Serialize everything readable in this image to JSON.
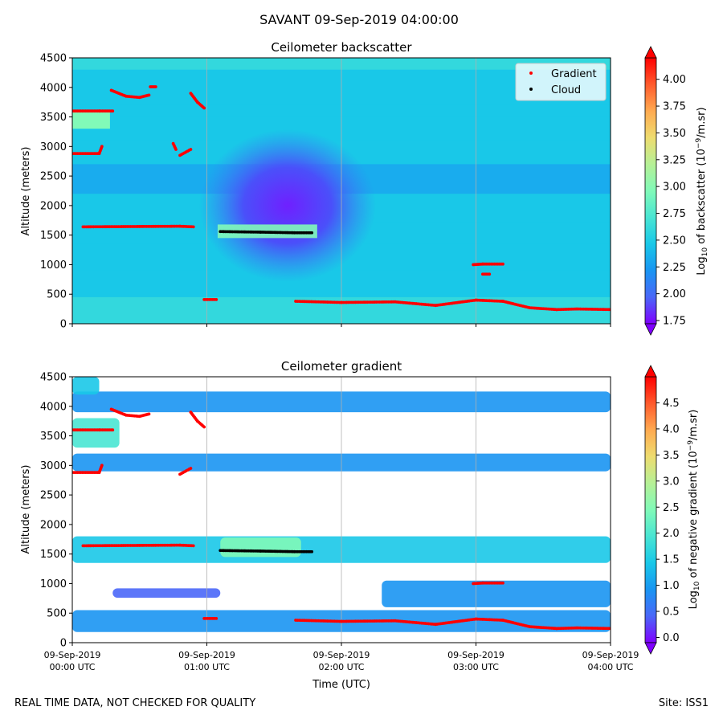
{
  "suptitle": "SAVANT 09-Sep-2019 04:00:00",
  "footer": {
    "left": "REAL TIME DATA, NOT CHECKED FOR QUALITY",
    "right": "Site: ISS1"
  },
  "colors": {
    "gradient_marker": "#ff0000",
    "cloud_marker": "#000000",
    "grid": "#b0b0b0"
  },
  "colormap": [
    "#7f00ff",
    "#4a67f8",
    "#1995f2",
    "#19c8e8",
    "#49e5d3",
    "#81fab8",
    "#b6f096",
    "#eedc6f",
    "#ffaa50",
    "#ff5a2c",
    "#ff0000"
  ],
  "chart_data": [
    {
      "type": "heatmap",
      "title": "Ceilometer backscatter",
      "xlabel": "",
      "ylabel": "Altitude (meters)",
      "ylim": [
        0,
        4500
      ],
      "xlim_hours": [
        0,
        4
      ],
      "yticks": [
        0,
        500,
        1000,
        1500,
        2000,
        2500,
        3000,
        3500,
        4000,
        4500
      ],
      "xtick_labels": [],
      "colorbar": {
        "label_prefix": "Log",
        "label_sub": "10",
        "label_mid": " of backscatter (10",
        "label_sup": "−9",
        "label_end": "/m.sr)",
        "range": [
          1.72,
          4.2
        ],
        "ticks": [
          1.75,
          2.0,
          2.25,
          2.5,
          2.75,
          3.0,
          3.25,
          3.5,
          3.75,
          4.0
        ],
        "tick_labels": [
          "1.75",
          "2.00",
          "2.25",
          "2.50",
          "2.75",
          "3.00",
          "3.25",
          "3.50",
          "3.75",
          "4.00"
        ]
      },
      "legend": {
        "placement": "top-right",
        "entries": [
          "Gradient",
          "Cloud"
        ]
      },
      "series": [
        {
          "name": "Gradient",
          "color": "#ff0000",
          "segments": [
            [
              [
                0.0,
                3600
              ],
              [
                0.2,
                3600
              ],
              [
                0.3,
                3600
              ]
            ],
            [
              [
                0.0,
                2880
              ],
              [
                0.2,
                2880
              ],
              [
                0.22,
                3000
              ]
            ],
            [
              [
                0.29,
                3950
              ],
              [
                0.4,
                3850
              ],
              [
                0.5,
                3830
              ],
              [
                0.57,
                3870
              ]
            ],
            [
              [
                0.58,
                4010
              ],
              [
                0.62,
                4010
              ]
            ],
            [
              [
                0.88,
                3900
              ],
              [
                0.93,
                3750
              ],
              [
                0.98,
                3650
              ]
            ],
            [
              [
                0.75,
                3050
              ],
              [
                0.77,
                2950
              ]
            ],
            [
              [
                0.8,
                2850
              ],
              [
                0.88,
                2950
              ]
            ],
            [
              [
                0.08,
                1640
              ],
              [
                0.8,
                1650
              ],
              [
                0.9,
                1640
              ]
            ],
            [
              [
                1.66,
                380
              ],
              [
                2.0,
                360
              ],
              [
                2.4,
                370
              ],
              [
                2.7,
                310
              ],
              [
                2.9,
                370
              ],
              [
                3.0,
                400
              ],
              [
                3.2,
                380
              ],
              [
                3.4,
                270
              ],
              [
                3.6,
                240
              ],
              [
                3.75,
                250
              ],
              [
                4.0,
                240
              ]
            ],
            [
              [
                2.98,
                1000
              ],
              [
                3.05,
                1010
              ],
              [
                3.2,
                1010
              ]
            ],
            [
              [
                3.05,
                840
              ],
              [
                3.1,
                840
              ]
            ],
            [
              [
                0.98,
                410
              ],
              [
                1.07,
                410
              ]
            ]
          ]
        },
        {
          "name": "Cloud",
          "color": "#000000",
          "segments": [
            [
              [
                1.1,
                1560
              ],
              [
                1.4,
                1550
              ],
              [
                1.65,
                1540
              ],
              [
                1.78,
                1540
              ]
            ]
          ]
        }
      ]
    },
    {
      "type": "heatmap",
      "title": "Ceilometer gradient",
      "xlabel": "Time (UTC)",
      "ylabel": "Altitude (meters)",
      "ylim": [
        0,
        4500
      ],
      "xlim_hours": [
        0,
        4
      ],
      "yticks": [
        0,
        500,
        1000,
        1500,
        2000,
        2500,
        3000,
        3500,
        4000,
        4500
      ],
      "xticks_hours": [
        0,
        1,
        2,
        3,
        4
      ],
      "xtick_labels": [
        [
          "09-Sep-2019",
          "00:00 UTC"
        ],
        [
          "09-Sep-2019",
          "01:00 UTC"
        ],
        [
          "09-Sep-2019",
          "02:00 UTC"
        ],
        [
          "09-Sep-2019",
          "03:00 UTC"
        ],
        [
          "09-Sep-2019",
          "04:00 UTC"
        ]
      ],
      "colorbar": {
        "label_prefix": "Log",
        "label_sub": "10",
        "label_mid": " of negative gradient (10",
        "label_sup": "−9",
        "label_end": "/m.sr)",
        "range": [
          -0.1,
          5.0
        ],
        "ticks": [
          0.0,
          0.5,
          1.0,
          1.5,
          2.0,
          2.5,
          3.0,
          3.5,
          4.0,
          4.5
        ],
        "tick_labels": [
          "0.0",
          "0.5",
          "1.0",
          "1.5",
          "2.0",
          "2.5",
          "3.0",
          "3.5",
          "4.0",
          "4.5"
        ]
      },
      "bands": [
        {
          "x": [
            0.0,
            4.0
          ],
          "y": [
            1350,
            1800
          ],
          "value": 1.6
        },
        {
          "x": [
            0.0,
            4.0
          ],
          "y": [
            180,
            550
          ],
          "value": 0.9
        },
        {
          "x": [
            0.3,
            1.1
          ],
          "y": [
            760,
            920
          ],
          "value": 0.4
        },
        {
          "x": [
            2.3,
            4.0
          ],
          "y": [
            600,
            1050
          ],
          "value": 0.9
        },
        {
          "x": [
            0.0,
            4.0
          ],
          "y": [
            2900,
            3200
          ],
          "value": 1.0
        },
        {
          "x": [
            0.0,
            4.0
          ],
          "y": [
            3900,
            4250
          ],
          "value": 1.0
        },
        {
          "x": [
            0.0,
            0.35
          ],
          "y": [
            3300,
            3800
          ],
          "value": 2.0
        },
        {
          "x": [
            0.0,
            0.2
          ],
          "y": [
            4200,
            4500
          ],
          "value": 1.6
        },
        {
          "x": [
            1.1,
            1.7
          ],
          "y": [
            1450,
            1780
          ],
          "value": 2.6
        }
      ],
      "series": [
        {
          "name": "Gradient",
          "color": "#ff0000",
          "segments": [
            [
              [
                0.0,
                3600
              ],
              [
                0.2,
                3600
              ],
              [
                0.3,
                3600
              ]
            ],
            [
              [
                0.0,
                2880
              ],
              [
                0.2,
                2880
              ],
              [
                0.22,
                3000
              ]
            ],
            [
              [
                0.29,
                3950
              ],
              [
                0.4,
                3850
              ],
              [
                0.5,
                3830
              ],
              [
                0.57,
                3870
              ]
            ],
            [
              [
                0.88,
                3900
              ],
              [
                0.93,
                3750
              ],
              [
                0.98,
                3650
              ]
            ],
            [
              [
                0.8,
                2850
              ],
              [
                0.88,
                2950
              ]
            ],
            [
              [
                0.08,
                1640
              ],
              [
                0.8,
                1650
              ],
              [
                0.9,
                1640
              ]
            ],
            [
              [
                1.66,
                380
              ],
              [
                2.0,
                360
              ],
              [
                2.4,
                370
              ],
              [
                2.7,
                310
              ],
              [
                2.9,
                370
              ],
              [
                3.0,
                400
              ],
              [
                3.2,
                380
              ],
              [
                3.4,
                270
              ],
              [
                3.6,
                240
              ],
              [
                3.75,
                250
              ],
              [
                4.0,
                240
              ]
            ],
            [
              [
                2.98,
                1000
              ],
              [
                3.05,
                1010
              ],
              [
                3.2,
                1010
              ]
            ],
            [
              [
                0.98,
                410
              ],
              [
                1.07,
                410
              ]
            ]
          ]
        },
        {
          "name": "Cloud",
          "color": "#000000",
          "segments": [
            [
              [
                1.1,
                1560
              ],
              [
                1.4,
                1550
              ],
              [
                1.65,
                1540
              ],
              [
                1.78,
                1540
              ]
            ]
          ]
        }
      ]
    }
  ]
}
